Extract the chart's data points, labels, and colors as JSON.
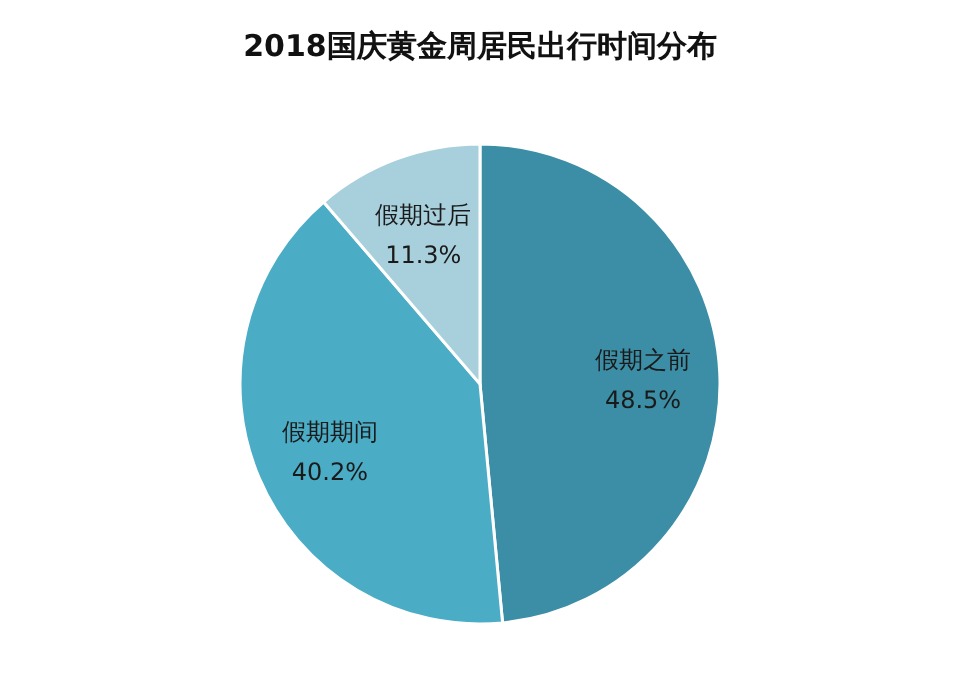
{
  "chart_data": {
    "type": "pie",
    "title": "2018国庆黄金周居民出行时间分布",
    "categories": [
      "假期之前",
      "假期期间",
      "假期过后"
    ],
    "values": [
      48.5,
      40.2,
      11.3
    ],
    "value_labels": [
      "48.5%",
      "40.2%",
      "11.3%"
    ],
    "colors": [
      "#3b8ea5",
      "#4bacc6",
      "#a8d0dc"
    ]
  }
}
